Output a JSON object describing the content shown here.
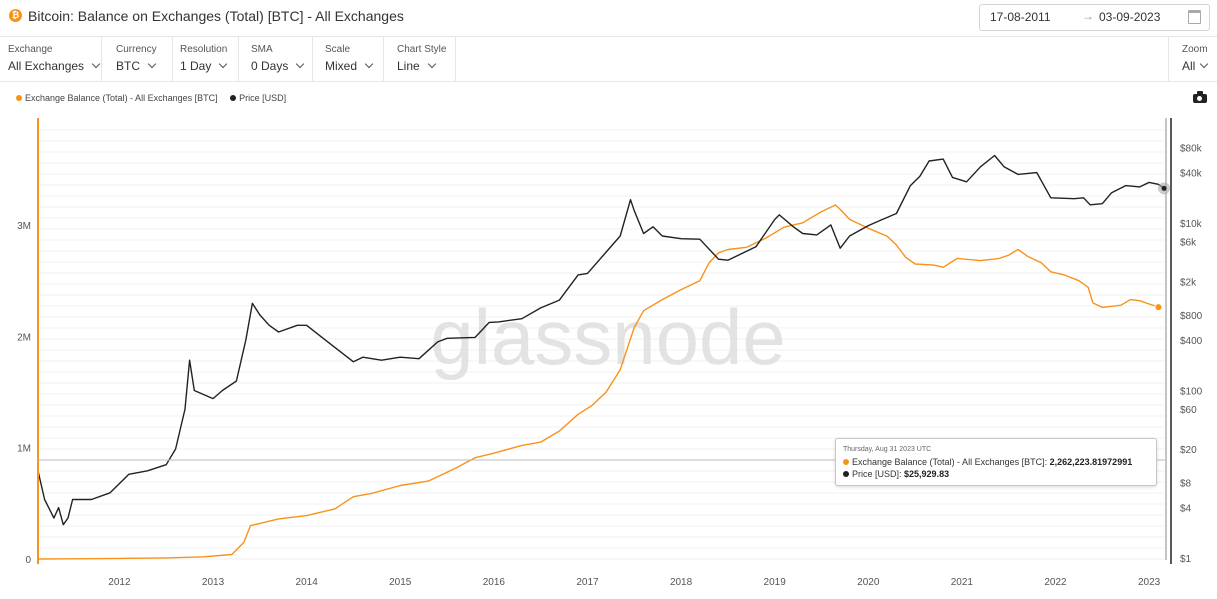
{
  "header": {
    "coin_symbol": "₿",
    "title": "Bitcoin: Balance on Exchanges (Total) [BTC] - All Exchanges",
    "date_from": "17-08-2011",
    "date_arrow": "→",
    "date_to": "03-09-2023"
  },
  "controls": [
    {
      "label": "Exchange",
      "value": "All Exchanges"
    },
    {
      "label": "Currency",
      "value": "BTC"
    },
    {
      "label": "Resolution",
      "value": "1 Day"
    },
    {
      "label": "SMA",
      "value": "0 Days"
    },
    {
      "label": "Scale",
      "value": "Mixed"
    },
    {
      "label": "Chart Style",
      "value": "Line"
    }
  ],
  "zoom": {
    "label": "Zoom",
    "value": "All"
  },
  "legend": [
    {
      "label": "Exchange Balance (Total) - All Exchanges [BTC]",
      "color": "#f7931a"
    },
    {
      "label": "Price [USD]",
      "color": "#222222"
    }
  ],
  "watermark": "glassnode",
  "tooltip": {
    "date": "Thursday, Aug 31 2023 UTC",
    "balance_label": "Exchange Balance (Total) - All Exchanges [BTC]:",
    "balance_value": "2,262,223.81972991",
    "price_label": "Price [USD]:",
    "price_value": "$25,929.83"
  },
  "chart_data": {
    "type": "line",
    "title": "Bitcoin: Balance on Exchanges (Total) [BTC] - All Exchanges",
    "x_ticks": [
      "2012",
      "2013",
      "2014",
      "2015",
      "2016",
      "2017",
      "2018",
      "2019",
      "2020",
      "2021",
      "2022",
      "2023"
    ],
    "left_axis": {
      "ticks": [
        "0",
        "1M",
        "2M",
        "3M"
      ],
      "tick_values": [
        0,
        1000000,
        2000000,
        3000000
      ],
      "range": [
        0,
        4000000
      ]
    },
    "right_axis": {
      "scale": "log",
      "ticks": [
        "$1",
        "$4",
        "$8",
        "$20",
        "$60",
        "$100",
        "$400",
        "$800",
        "$2k",
        "$6k",
        "$10k",
        "$40k",
        "$80k"
      ],
      "tick_values": [
        1,
        4,
        8,
        20,
        60,
        100,
        400,
        800,
        2000,
        6000,
        10000,
        40000,
        80000
      ],
      "range": [
        1,
        130000
      ]
    },
    "x_range": [
      2011.63,
      2023.67
    ],
    "series": [
      {
        "name": "Exchange Balance (Total) - All Exchanges [BTC]",
        "axis": "left",
        "color": "#f7931a",
        "points": [
          [
            2011.63,
            0
          ],
          [
            2012.0,
            2000
          ],
          [
            2012.5,
            5000
          ],
          [
            2013.0,
            10000
          ],
          [
            2013.4,
            20000
          ],
          [
            2013.7,
            40000
          ],
          [
            2013.83,
            150000
          ],
          [
            2013.9,
            300000
          ],
          [
            2014.0,
            320000
          ],
          [
            2014.2,
            360000
          ],
          [
            2014.5,
            390000
          ],
          [
            2014.8,
            450000
          ],
          [
            2015.0,
            560000
          ],
          [
            2015.2,
            590000
          ],
          [
            2015.5,
            660000
          ],
          [
            2015.8,
            700000
          ],
          [
            2016.0,
            780000
          ],
          [
            2016.1,
            820000
          ],
          [
            2016.3,
            910000
          ],
          [
            2016.5,
            950000
          ],
          [
            2016.8,
            1020000
          ],
          [
            2017.0,
            1050000
          ],
          [
            2017.2,
            1150000
          ],
          [
            2017.4,
            1300000
          ],
          [
            2017.55,
            1380000
          ],
          [
            2017.7,
            1500000
          ],
          [
            2017.85,
            1700000
          ],
          [
            2018.0,
            2080000
          ],
          [
            2018.1,
            2230000
          ],
          [
            2018.3,
            2330000
          ],
          [
            2018.5,
            2420000
          ],
          [
            2018.7,
            2500000
          ],
          [
            2018.8,
            2660000
          ],
          [
            2018.9,
            2750000
          ],
          [
            2019.0,
            2780000
          ],
          [
            2019.2,
            2800000
          ],
          [
            2019.4,
            2880000
          ],
          [
            2019.6,
            2980000
          ],
          [
            2019.8,
            3020000
          ],
          [
            2020.0,
            3120000
          ],
          [
            2020.15,
            3180000
          ],
          [
            2020.2,
            3140000
          ],
          [
            2020.3,
            3050000
          ],
          [
            2020.5,
            2970000
          ],
          [
            2020.7,
            2900000
          ],
          [
            2020.8,
            2820000
          ],
          [
            2020.9,
            2710000
          ],
          [
            2021.0,
            2650000
          ],
          [
            2021.2,
            2640000
          ],
          [
            2021.3,
            2620000
          ],
          [
            2021.45,
            2700000
          ],
          [
            2021.7,
            2680000
          ],
          [
            2021.9,
            2700000
          ],
          [
            2022.0,
            2730000
          ],
          [
            2022.1,
            2780000
          ],
          [
            2022.2,
            2720000
          ],
          [
            2022.35,
            2660000
          ],
          [
            2022.45,
            2580000
          ],
          [
            2022.6,
            2550000
          ],
          [
            2022.75,
            2500000
          ],
          [
            2022.85,
            2440000
          ],
          [
            2022.9,
            2300000
          ],
          [
            2023.0,
            2260000
          ],
          [
            2023.2,
            2280000
          ],
          [
            2023.3,
            2330000
          ],
          [
            2023.4,
            2320000
          ],
          [
            2023.5,
            2290000
          ],
          [
            2023.6,
            2262224
          ]
        ]
      },
      {
        "name": "Price [USD]",
        "axis": "right",
        "color": "#222222",
        "points": [
          [
            2011.63,
            11
          ],
          [
            2011.7,
            5
          ],
          [
            2011.8,
            3
          ],
          [
            2011.85,
            4
          ],
          [
            2011.9,
            2.5
          ],
          [
            2011.95,
            3
          ],
          [
            2012.0,
            5
          ],
          [
            2012.2,
            5
          ],
          [
            2012.4,
            6
          ],
          [
            2012.6,
            10
          ],
          [
            2012.8,
            11
          ],
          [
            2013.0,
            13
          ],
          [
            2013.1,
            20
          ],
          [
            2013.2,
            60
          ],
          [
            2013.25,
            230
          ],
          [
            2013.3,
            100
          ],
          [
            2013.5,
            80
          ],
          [
            2013.6,
            100
          ],
          [
            2013.75,
            130
          ],
          [
            2013.85,
            400
          ],
          [
            2013.92,
            1100
          ],
          [
            2014.0,
            800
          ],
          [
            2014.1,
            600
          ],
          [
            2014.2,
            500
          ],
          [
            2014.4,
            600
          ],
          [
            2014.5,
            600
          ],
          [
            2014.7,
            400
          ],
          [
            2015.0,
            220
          ],
          [
            2015.1,
            250
          ],
          [
            2015.3,
            230
          ],
          [
            2015.5,
            250
          ],
          [
            2015.7,
            240
          ],
          [
            2015.9,
            380
          ],
          [
            2016.0,
            420
          ],
          [
            2016.3,
            430
          ],
          [
            2016.45,
            650
          ],
          [
            2016.55,
            660
          ],
          [
            2016.8,
            720
          ],
          [
            2017.0,
            970
          ],
          [
            2017.2,
            1200
          ],
          [
            2017.4,
            2400
          ],
          [
            2017.5,
            2500
          ],
          [
            2017.7,
            4500
          ],
          [
            2017.85,
            7000
          ],
          [
            2017.96,
            19000
          ],
          [
            2018.0,
            14000
          ],
          [
            2018.1,
            7500
          ],
          [
            2018.2,
            9000
          ],
          [
            2018.3,
            7000
          ],
          [
            2018.5,
            6500
          ],
          [
            2018.7,
            6400
          ],
          [
            2018.9,
            3700
          ],
          [
            2019.0,
            3600
          ],
          [
            2019.3,
            5200
          ],
          [
            2019.5,
            11000
          ],
          [
            2019.55,
            12500
          ],
          [
            2019.7,
            9000
          ],
          [
            2019.8,
            7500
          ],
          [
            2019.95,
            7200
          ],
          [
            2020.1,
            9500
          ],
          [
            2020.2,
            5000
          ],
          [
            2020.3,
            7000
          ],
          [
            2020.5,
            9300
          ],
          [
            2020.65,
            11000
          ],
          [
            2020.8,
            13000
          ],
          [
            2020.95,
            28000
          ],
          [
            2021.05,
            36000
          ],
          [
            2021.15,
            55000
          ],
          [
            2021.3,
            58000
          ],
          [
            2021.4,
            35000
          ],
          [
            2021.55,
            31000
          ],
          [
            2021.7,
            47000
          ],
          [
            2021.85,
            64000
          ],
          [
            2021.95,
            47000
          ],
          [
            2022.1,
            38000
          ],
          [
            2022.3,
            40000
          ],
          [
            2022.45,
            20000
          ],
          [
            2022.7,
            19500
          ],
          [
            2022.8,
            20000
          ],
          [
            2022.87,
            16500
          ],
          [
            2023.0,
            17000
          ],
          [
            2023.1,
            23000
          ],
          [
            2023.25,
            28000
          ],
          [
            2023.4,
            27000
          ],
          [
            2023.5,
            30500
          ],
          [
            2023.6,
            29000
          ],
          [
            2023.66,
            25930
          ]
        ]
      }
    ]
  }
}
